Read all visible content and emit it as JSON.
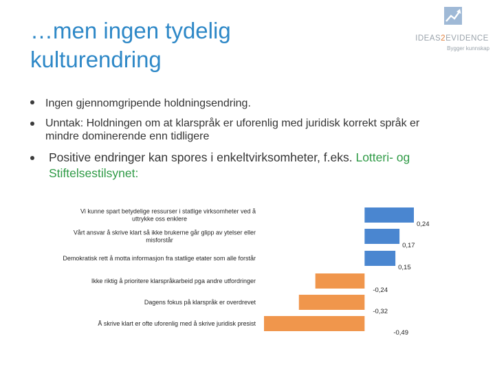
{
  "slide": {
    "title_line1": "…men ingen tydelig",
    "title_line2": "kulturendring"
  },
  "logo": {
    "name_part1": "IDEAS",
    "name_part2": "2",
    "name_part3": "EVIDENCE",
    "tagline": "Bygger kunnskap",
    "mark": "chart-arrow-icon"
  },
  "bullets": {
    "b1": "Ingen gjennomgripende holdningsendring.",
    "b2_line1": "Unntak: Holdningen om at klarspråk er uforenlig med juridisk korrekt språk er",
    "b2_line2": "mindre dominerende enn tidligere",
    "b3_line1_text": "Positive endringer kan spores i enkeltvirksomheter, f.eks. ",
    "b3_line1_highlight": "Lotteri- og",
    "b3_line2_highlight": "Stiftelsestilsynet:"
  },
  "colors": {
    "title": "#2e88c7",
    "positive": "#4a86d0",
    "negative": "#f0964c",
    "highlight": "#2e9a45"
  },
  "chart_data": {
    "type": "bar",
    "orientation": "horizontal",
    "categories": [
      [
        "Vi kunne spart betydelige ressurser i statlige virksomheter ved å",
        "uttrykke oss enklere"
      ],
      [
        "Vårt ansvar å skrive klart så ikke brukerne går glipp av ytelser eller",
        "misforstår"
      ],
      [
        "Demokratisk rett å motta informasjon fra statlige etater som alle forstår"
      ],
      [
        "Ikke riktig å prioritere klarspråkarbeid pga andre utfordringer"
      ],
      [
        "Dagens fokus på klarspråk er overdrevet"
      ],
      [
        "Å skrive klart er ofte uforenlig med å skrive juridisk presist"
      ]
    ],
    "values": [
      0.24,
      0.17,
      0.15,
      -0.24,
      -0.32,
      -0.49
    ],
    "value_labels": [
      "0,24",
      "0,17",
      "0,15",
      "-0,24",
      "-0,32",
      "-0,49"
    ],
    "xlim": [
      -0.49,
      0.24
    ],
    "grid": false,
    "legend": "none"
  }
}
